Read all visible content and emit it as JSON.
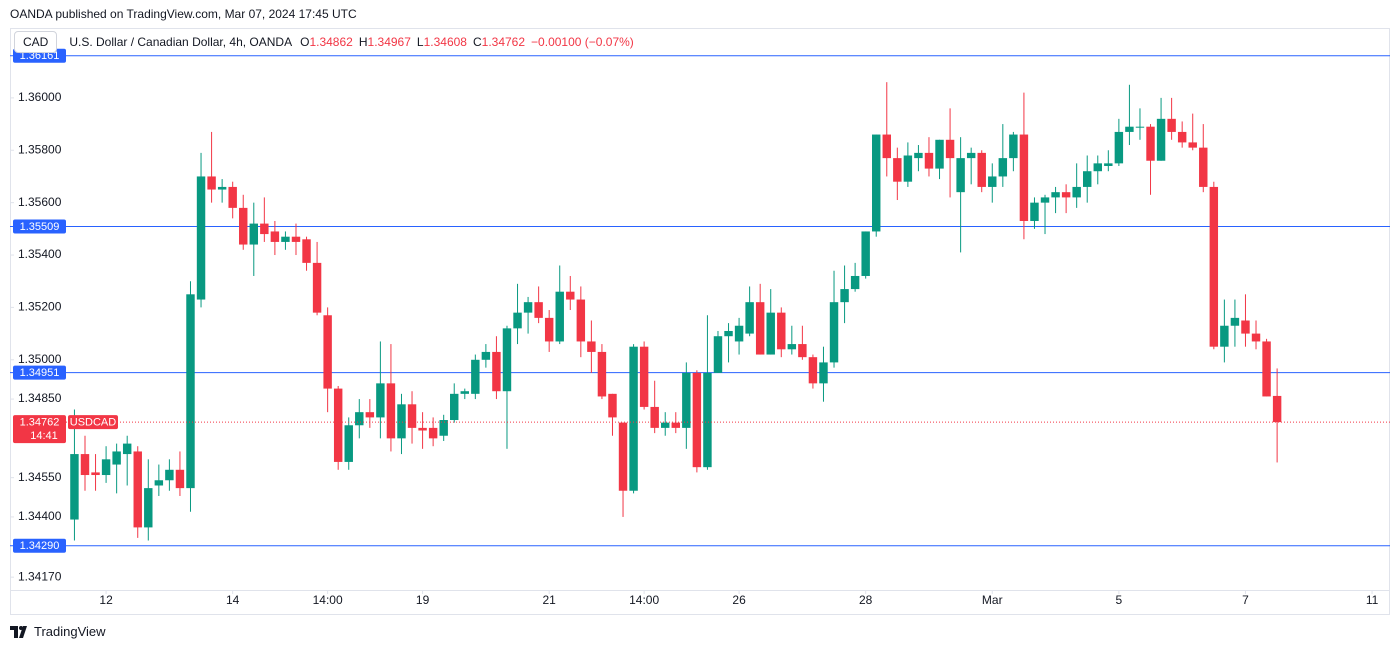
{
  "chart_data": {
    "type": "candlestick",
    "published": "OANDA published on TradingView.com, Mar 07, 2024 17:45 UTC",
    "currency_button": "CAD",
    "symbol": "U.S. Dollar / Canadian Dollar, 4h, OANDA",
    "ohlc_legend": {
      "open_label": "O",
      "open": 1.34862,
      "high_label": "H",
      "high": 1.34967,
      "low_label": "L",
      "low": 1.34608,
      "close_label": "C",
      "close": 1.34762,
      "change": "−0.00100 (−0.07%)"
    },
    "up_color": "#089981",
    "down_color": "#f23645",
    "line_color": "#2962ff",
    "xlim": [
      -0.8,
      124.7
    ],
    "ylim": [
      1.34121,
      1.36263
    ],
    "yticks": [
      {
        "value": 1.36,
        "label": "1.36000"
      },
      {
        "value": 1.358,
        "label": "1.35800"
      },
      {
        "value": 1.356,
        "label": "1.35600"
      },
      {
        "value": 1.354,
        "label": "1.35400"
      },
      {
        "value": 1.352,
        "label": "1.35200"
      },
      {
        "value": 1.35,
        "label": "1.35000"
      },
      {
        "value": 1.3485,
        "label": "1.34850"
      },
      {
        "value": 1.3455,
        "label": "1.34550"
      },
      {
        "value": 1.344,
        "label": "1.34400"
      },
      {
        "value": 1.3417,
        "label": "1.34170"
      }
    ],
    "xticks": [
      {
        "value": 3,
        "label": "12"
      },
      {
        "value": 15,
        "label": "14"
      },
      {
        "value": 24,
        "label": "14:00"
      },
      {
        "value": 33,
        "label": "19"
      },
      {
        "value": 45,
        "label": "21"
      },
      {
        "value": 54,
        "label": "14:00"
      },
      {
        "value": 63,
        "label": "26"
      },
      {
        "value": 75,
        "label": "28"
      },
      {
        "value": 87,
        "label": "Mar"
      },
      {
        "value": 99,
        "label": "5"
      },
      {
        "value": 111,
        "label": "7"
      },
      {
        "value": 123,
        "label": "11"
      }
    ],
    "price_lines": [
      {
        "value": 1.36161,
        "label": "1.36161"
      },
      {
        "value": 1.35509,
        "label": "1.35509"
      },
      {
        "value": 1.34951,
        "label": "1.34951"
      },
      {
        "value": 1.3429,
        "label": "1.34290"
      }
    ],
    "last_price": {
      "value": 1.34762,
      "label": "1.34762",
      "symbol": "USDCAD",
      "countdown": "14:41"
    },
    "candles": {
      "open": [
        1.3439,
        1.3464,
        1.3457,
        1.3456,
        1.346,
        1.3464,
        1.3465,
        1.3436,
        1.3452,
        1.3454,
        1.3458,
        1.3451,
        1.3523,
        1.357,
        1.3565,
        1.3566,
        1.3558,
        1.3544,
        1.3552,
        1.3549,
        1.3545,
        1.3547,
        1.3546,
        1.3537,
        1.3517,
        1.3489,
        1.3461,
        1.3475,
        1.348,
        1.3478,
        1.3491,
        1.347,
        1.3483,
        1.3474,
        1.3474,
        1.3471,
        1.3477,
        1.3487,
        1.3487,
        1.35,
        1.3503,
        1.3488,
        1.3512,
        1.3518,
        1.3522,
        1.3516,
        1.3507,
        1.3526,
        1.3523,
        1.3507,
        1.3503,
        1.3487,
        1.3476,
        1.345,
        1.3505,
        1.3482,
        1.3474,
        1.3476,
        1.3474,
        1.3495,
        1.3459,
        1.3495,
        1.3509,
        1.3507,
        1.351,
        1.3522,
        1.3502,
        1.3518,
        1.3504,
        1.3506,
        1.3501,
        1.3491,
        1.3499,
        1.3522,
        1.3527,
        1.3532,
        1.3549,
        1.3586,
        1.3577,
        1.3568,
        1.3577,
        1.3579,
        1.3573,
        1.3584,
        1.3564,
        1.3577,
        1.3579,
        1.3566,
        1.357,
        1.3577,
        1.3586,
        1.3553,
        1.356,
        1.3562,
        1.3564,
        1.3562,
        1.3566,
        1.3572,
        1.3574,
        1.3575,
        1.3587,
        1.3589,
        1.3589,
        1.3576,
        1.3592,
        1.3587,
        1.3583,
        1.3581,
        1.3566,
        1.3505,
        1.3513,
        1.3515,
        1.351,
        1.3507,
        1.34862
      ],
      "high": [
        1.3481,
        1.3471,
        1.3464,
        1.3467,
        1.3468,
        1.3471,
        1.3467,
        1.3462,
        1.346,
        1.3462,
        1.3465,
        1.353,
        1.3579,
        1.3587,
        1.3569,
        1.3568,
        1.3563,
        1.356,
        1.3562,
        1.3553,
        1.3549,
        1.3552,
        1.3547,
        1.3545,
        1.352,
        1.349,
        1.3478,
        1.3485,
        1.3485,
        1.3507,
        1.3506,
        1.3487,
        1.3488,
        1.348,
        1.3478,
        1.3479,
        1.3491,
        1.3489,
        1.3502,
        1.3506,
        1.3509,
        1.3513,
        1.3529,
        1.3524,
        1.3528,
        1.3519,
        1.3536,
        1.3532,
        1.3528,
        1.3515,
        1.3506,
        1.3487,
        1.3476,
        1.3506,
        1.3507,
        1.3492,
        1.348,
        1.348,
        1.3499,
        1.3496,
        1.3517,
        1.3511,
        1.3514,
        1.3516,
        1.3528,
        1.3529,
        1.3527,
        1.352,
        1.3513,
        1.3513,
        1.3502,
        1.3505,
        1.3534,
        1.3536,
        1.3537,
        1.3549,
        1.3586,
        1.3606,
        1.3581,
        1.3583,
        1.3582,
        1.3585,
        1.3584,
        1.3596,
        1.3585,
        1.3581,
        1.358,
        1.3575,
        1.359,
        1.3587,
        1.3602,
        1.3562,
        1.3563,
        1.3566,
        1.3567,
        1.3575,
        1.3578,
        1.3578,
        1.358,
        1.3592,
        1.3605,
        1.3596,
        1.359,
        1.36,
        1.36,
        1.3591,
        1.3594,
        1.359,
        1.3568,
        1.3523,
        1.3523,
        1.3525,
        1.3515,
        1.3508,
        1.34967
      ],
      "low": [
        1.3431,
        1.345,
        1.345,
        1.3453,
        1.3449,
        1.3452,
        1.3432,
        1.3431,
        1.3448,
        1.345,
        1.3448,
        1.3442,
        1.352,
        1.356,
        1.356,
        1.3554,
        1.3542,
        1.3532,
        1.3545,
        1.354,
        1.3542,
        1.354,
        1.3534,
        1.3517,
        1.348,
        1.3458,
        1.3458,
        1.347,
        1.3474,
        1.347,
        1.3465,
        1.3464,
        1.3468,
        1.3466,
        1.3467,
        1.3469,
        1.3476,
        1.3485,
        1.3485,
        1.3497,
        1.3485,
        1.3466,
        1.3506,
        1.351,
        1.3514,
        1.3503,
        1.3506,
        1.3519,
        1.3501,
        1.3495,
        1.3485,
        1.3471,
        1.344,
        1.3449,
        1.3481,
        1.3472,
        1.3471,
        1.3472,
        1.3466,
        1.3457,
        1.3458,
        1.3495,
        1.3499,
        1.3502,
        1.3509,
        1.3502,
        1.3502,
        1.3501,
        1.3502,
        1.35,
        1.3489,
        1.3484,
        1.3497,
        1.3514,
        1.3526,
        1.3531,
        1.3547,
        1.357,
        1.3561,
        1.3566,
        1.3572,
        1.357,
        1.3569,
        1.3562,
        1.3541,
        1.3567,
        1.3564,
        1.356,
        1.3566,
        1.3572,
        1.3546,
        1.355,
        1.3548,
        1.3556,
        1.3556,
        1.3558,
        1.356,
        1.3567,
        1.3572,
        1.3574,
        1.3582,
        1.3584,
        1.3563,
        1.3576,
        1.3584,
        1.3581,
        1.358,
        1.3564,
        1.3504,
        1.3499,
        1.3505,
        1.3505,
        1.3504,
        1.3486,
        1.34608
      ],
      "close": [
        1.3464,
        1.3456,
        1.3456,
        1.3462,
        1.3465,
        1.3468,
        1.3436,
        1.3451,
        1.3454,
        1.3458,
        1.3451,
        1.3525,
        1.357,
        1.3565,
        1.3566,
        1.3558,
        1.3544,
        1.3552,
        1.3548,
        1.3545,
        1.3547,
        1.3545,
        1.3537,
        1.3518,
        1.3489,
        1.3461,
        1.3475,
        1.348,
        1.3478,
        1.3491,
        1.347,
        1.3483,
        1.3474,
        1.3473,
        1.347,
        1.3477,
        1.3487,
        1.3488,
        1.35,
        1.3503,
        1.3488,
        1.3512,
        1.3518,
        1.3522,
        1.3516,
        1.3507,
        1.3526,
        1.3523,
        1.3507,
        1.3503,
        1.3486,
        1.3478,
        1.345,
        1.3505,
        1.3482,
        1.3474,
        1.3476,
        1.3474,
        1.3495,
        1.3459,
        1.3495,
        1.3509,
        1.3511,
        1.3513,
        1.3522,
        1.3502,
        1.3518,
        1.3504,
        1.3506,
        1.3501,
        1.3491,
        1.3499,
        1.3522,
        1.3527,
        1.3532,
        1.3549,
        1.3586,
        1.3577,
        1.3568,
        1.3578,
        1.3579,
        1.3573,
        1.3584,
        1.3577,
        1.3577,
        1.3579,
        1.3566,
        1.357,
        1.3577,
        1.3586,
        1.3553,
        1.356,
        1.3562,
        1.3564,
        1.3562,
        1.3566,
        1.3572,
        1.3575,
        1.3575,
        1.3587,
        1.3589,
        1.3589,
        1.3576,
        1.3592,
        1.3587,
        1.3583,
        1.3581,
        1.3566,
        1.3505,
        1.3513,
        1.3516,
        1.351,
        1.3507,
        1.3486,
        1.34762
      ]
    },
    "footer": "TradingView"
  }
}
